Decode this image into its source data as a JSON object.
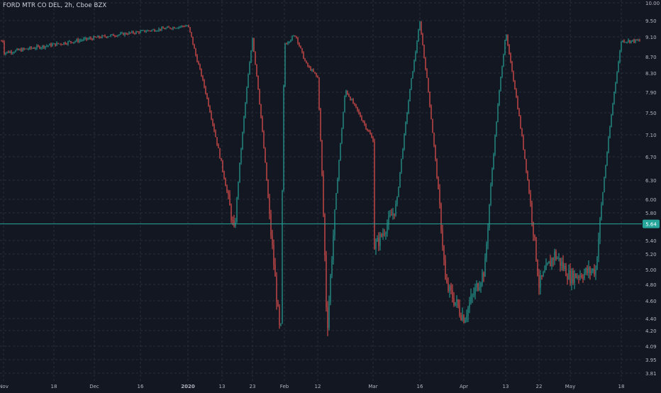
{
  "header": {
    "symbol_title": "FORD MTR CO DEL, 2h, Cboe BZX"
  },
  "colors": {
    "background": "#131722",
    "grid": "#2a2e39",
    "up": "#26a69a",
    "down": "#ef5350",
    "price_line": "#26a69a",
    "axis_text": "#b2b5be",
    "badge_bg": "#26a69a"
  },
  "chart_data": {
    "type": "candlestick",
    "title": "FORD MTR CO DEL, 2h, Cboe BZX",
    "ylim": [
      3.75,
      10.0
    ],
    "y_ticks": [
      "10.00",
      "9.50",
      "9.10",
      "8.70",
      "8.30",
      "7.90",
      "7.50",
      "7.10",
      "6.70",
      "6.30",
      "6.00",
      "5.80",
      "5.40",
      "5.20",
      "5.00",
      "4.80",
      "4.60",
      "4.40",
      "4.20",
      "4.09",
      "3.95",
      "3.81"
    ],
    "x_ticks": [
      "Nov",
      "18",
      "Dec",
      "16",
      "2020",
      "13",
      "23",
      "Feb",
      "12",
      "Mar",
      "16",
      "Apr",
      "13",
      "22",
      "May",
      "18"
    ],
    "last_price": "5.64",
    "grid": true,
    "path": [
      [
        "Nov",
        8.78
      ],
      [
        "18",
        9.02
      ],
      [
        "Dec",
        9.08
      ],
      [
        "16",
        9.45
      ],
      [
        "2020",
        9.38
      ],
      [
        "13",
        9.2
      ],
      [
        "23",
        9.1
      ],
      [
        "Feb",
        8.95
      ],
      [
        "Feb",
        9.15
      ],
      [
        "Feb",
        8.5
      ],
      [
        "12",
        8.2
      ],
      [
        "12",
        7.95
      ],
      [
        "Mar",
        7.0
      ],
      [
        "Mar",
        5.9
      ],
      [
        "16",
        5.3
      ],
      [
        "16",
        4.2
      ],
      [
        "16",
        4.05
      ],
      [
        "16",
        5.5
      ],
      [
        "Apr",
        4.4
      ],
      [
        "Apr",
        5.0
      ],
      [
        "13",
        5.4
      ],
      [
        "22",
        4.8
      ],
      [
        "22",
        5.2
      ],
      [
        "May",
        4.9
      ],
      [
        "May",
        5.0
      ],
      [
        "18",
        4.8
      ],
      [
        "18",
        5.64
      ]
    ]
  }
}
